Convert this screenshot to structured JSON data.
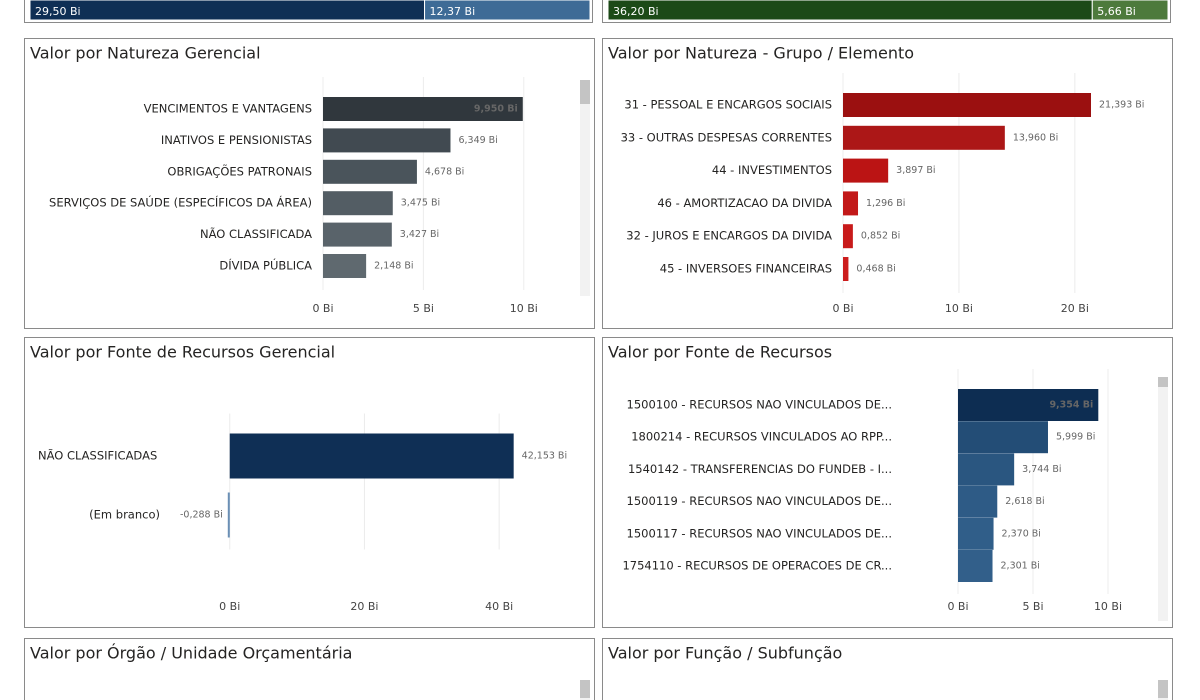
{
  "chart_data": [
    {
      "type": "stacked-bar",
      "values": [
        29.5,
        12.37
      ],
      "value_labels": [
        "29,50 Bi",
        "12,37 Bi"
      ],
      "colors": [
        "#0f2f55",
        "#3e6b96"
      ]
    },
    {
      "type": "stacked-bar",
      "values": [
        36.2,
        5.66
      ],
      "value_labels": [
        "36,20 Bi",
        "5,66 Bi"
      ],
      "colors": [
        "#1c4a17",
        "#4d7a3c"
      ]
    },
    {
      "type": "hbar",
      "title": "Valor por Natureza Gerencial",
      "categories": [
        "VENCIMENTOS E VANTAGENS",
        "INATIVOS E PENSIONISTAS",
        "OBRIGAÇÕES PATRONAIS",
        "SERVIÇOS DE SAÚDE (ESPECÍFICOS DA ÁREA)",
        "NÃO CLASSIFICADA",
        "DÍVIDA PÚBLICA"
      ],
      "values": [
        9.95,
        6.349,
        4.678,
        3.475,
        3.427,
        2.148
      ],
      "value_labels": [
        "9,950 Bi",
        "6,349 Bi",
        "4,678 Bi",
        "3,475 Bi",
        "3,427 Bi",
        "2,148 Bi"
      ],
      "colors": [
        "#30373d",
        "#414a51",
        "#4a545b",
        "#535d64",
        "#59636a",
        "#5f696f"
      ],
      "xlim": [
        0,
        12.7
      ],
      "xticks": [
        {
          "value": 0,
          "label": "0 Bi"
        },
        {
          "value": 5,
          "label": "5 Bi"
        },
        {
          "value": 10,
          "label": "10 Bi"
        }
      ],
      "grid": true
    },
    {
      "type": "hbar",
      "title": "Valor por Natureza - Grupo / Elemento",
      "categories": [
        "31 - PESSOAL E ENCARGOS SOCIAIS",
        "33 - OUTRAS DESPESAS CORRENTES",
        "44 - INVESTIMENTOS",
        "46 - AMORTIZACAO DA DIVIDA",
        "32 - JUROS E ENCARGOS DA DIVIDA",
        "45 - INVERSOES FINANCEIRAS"
      ],
      "values": [
        21.393,
        13.96,
        3.897,
        1.296,
        0.852,
        0.468
      ],
      "value_labels": [
        "21,393 Bi",
        "13,960 Bi",
        "3,897 Bi",
        "1,296 Bi",
        "0,852 Bi",
        "0,468 Bi"
      ],
      "colors": [
        "#9b1010",
        "#ac1717",
        "#bb1414",
        "#c21818",
        "#c81a1a",
        "#cc1d1d"
      ],
      "xlim": [
        0,
        27
      ],
      "xticks": [
        {
          "value": 0,
          "label": "0 Bi"
        },
        {
          "value": 10,
          "label": "10 Bi"
        },
        {
          "value": 20,
          "label": "20 Bi"
        }
      ],
      "grid": true
    },
    {
      "type": "hbar",
      "title": "Valor por Fonte de Recursos Gerencial",
      "categories": [
        "NÃO CLASSIFICADAS",
        "(Em branco)"
      ],
      "values": [
        42.153,
        -0.288
      ],
      "value_labels": [
        "42,153 Bi",
        "-0,288 Bi"
      ],
      "colors": [
        "#0f2f55",
        "#6b8fb5"
      ],
      "xlim": [
        -1,
        52
      ],
      "xticks": [
        {
          "value": 0,
          "label": "0 Bi"
        },
        {
          "value": 20,
          "label": "20 Bi"
        },
        {
          "value": 40,
          "label": "40 Bi"
        }
      ],
      "grid": true
    },
    {
      "type": "hbar",
      "title": "Valor por Fonte de Recursos",
      "categories": [
        "1500100 - RECURSOS NAO VINCULADOS DE...",
        "1800214 - RECURSOS VINCULADOS AO RPP...",
        "1540142 - TRANSFERENCIAS DO FUNDEB - I...",
        "1500119 - RECURSOS NAO VINCULADOS DE...",
        "1500117 - RECURSOS NAO VINCULADOS DE...",
        "1754110 - RECURSOS DE OPERACOES DE CR..."
      ],
      "values": [
        9.354,
        5.999,
        3.744,
        2.618,
        2.37,
        2.301
      ],
      "value_labels": [
        "9,354 Bi",
        "5,999 Bi",
        "3,744 Bi",
        "2,618 Bi",
        "2,370 Bi",
        "2,301 Bi"
      ],
      "colors": [
        "#0d2d52",
        "#234d76",
        "#2a5680",
        "#2e5b86",
        "#305e89",
        "#325f8a"
      ],
      "xlim": [
        0,
        13.2
      ],
      "xticks": [
        {
          "value": 0,
          "label": "0 Bi"
        },
        {
          "value": 5,
          "label": "5 Bi"
        },
        {
          "value": 10,
          "label": "10 Bi"
        }
      ],
      "grid": true
    },
    {
      "type": "hbar",
      "title": "Valor por Órgão / Unidade Orçamentária"
    },
    {
      "type": "hbar",
      "title": "Valor por Função / Subfunção"
    }
  ]
}
